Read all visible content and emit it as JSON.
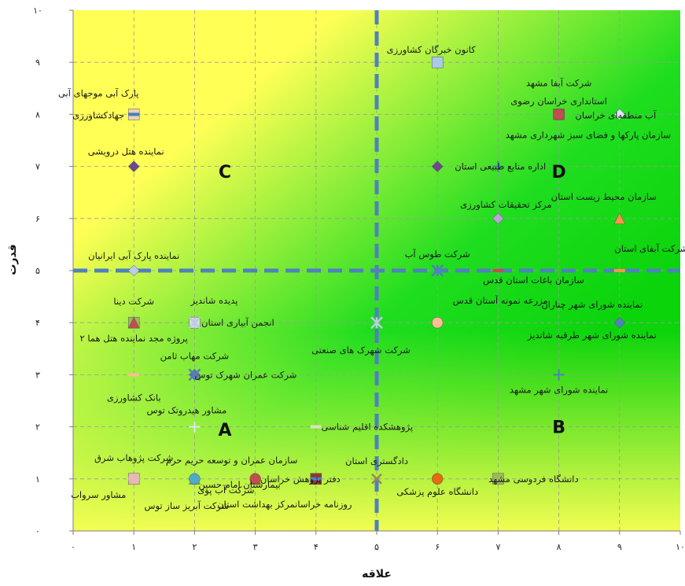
{
  "chart_data": {
    "type": "scatter",
    "title": "",
    "xlabel": "علاقه",
    "ylabel": "قدرت",
    "xlim": [
      0,
      10
    ],
    "ylim": [
      0,
      10
    ],
    "x_tick_labels": [
      "۰",
      "۱",
      "۲",
      "۳",
      "۴",
      "۵",
      "۶",
      "۷",
      "۸",
      "۹",
      "۱۰"
    ],
    "y_tick_labels": [
      "۰",
      "۱",
      "۲",
      "۳",
      "۴",
      "۵",
      "۶",
      "۷",
      "۸",
      "۹",
      "۱۰"
    ],
    "grid": true,
    "divider_x": 5,
    "divider_y": 5,
    "quadrant_labels": [
      {
        "text": "A",
        "x": 2.5,
        "y": 1.95
      },
      {
        "text": "B",
        "x": 8.0,
        "y": 2.0
      },
      {
        "text": "C",
        "x": 2.5,
        "y": 6.9
      },
      {
        "text": "D",
        "x": 8.0,
        "y": 6.9
      }
    ],
    "points": [
      {
        "label": "کانون خبرگان کشاورزی",
        "x": 6,
        "y": 9,
        "marker": "square",
        "color": "#aacbe8"
      },
      {
        "label": "پارک آبی موجهای آبی",
        "x": 1,
        "y": 8,
        "marker": "square",
        "color": "#ead4b6"
      },
      {
        "label": "جهادکشاورزی",
        "x": 1,
        "y": 8,
        "marker": "dash",
        "color": "#4a7ebb"
      },
      {
        "label": "شرکت آبفا مشهد",
        "x": 8,
        "y": 8,
        "marker": "square",
        "color": "#c0504d"
      },
      {
        "label": "استانداری خراسان رضوی",
        "x": 8,
        "y": 8,
        "marker": "circle",
        "color": "#c0504d"
      },
      {
        "label": "آب منطقه‌ای خراسان",
        "x": 9,
        "y": 8,
        "marker": "diamond",
        "color": "#dce6f2"
      },
      {
        "label": "سازمان پارکها و فضای سبز شهرداری مشهد",
        "x": 9,
        "y": 8,
        "marker": "diamond",
        "color": "#dce6f2"
      },
      {
        "label": "نماینده هتل درویشی",
        "x": 1,
        "y": 7,
        "marker": "diamond",
        "color": "#6c4a8c"
      },
      {
        "label": "اداره منابع طبیعی استان",
        "x": 6,
        "y": 7,
        "marker": "diamond",
        "color": "#6c4a8c"
      },
      {
        "label": "اداره منابع طبیعی استان",
        "x": 7,
        "y": 7,
        "marker": "plus",
        "color": "#4a7ebb"
      },
      {
        "label": "مرکز تحقیقات کشاورزی",
        "x": 7,
        "y": 6,
        "marker": "diamond",
        "color": "#b9a3d8"
      },
      {
        "label": "سازمان محیط زیست استان",
        "x": 9,
        "y": 6,
        "marker": "triangle",
        "color": "#f79646"
      },
      {
        "label": "نماینده پارک آبی ایرانیان",
        "x": 1,
        "y": 5,
        "marker": "diamond",
        "color": "#b9cde5"
      },
      {
        "label": "شرکت طوس آب",
        "x": 6,
        "y": 5,
        "marker": "star",
        "color": "#4f81bd"
      },
      {
        "label": "شرکت آبفای استان",
        "x": 9,
        "y": 5,
        "marker": "dash",
        "color": "#f79646"
      },
      {
        "label": "سازمان باغات استان قدس",
        "x": 7,
        "y": 5,
        "marker": "dash",
        "color": "#c0504d"
      },
      {
        "label": "شرکت دینا",
        "x": 1,
        "y": 4,
        "marker": "square",
        "color": "#9bbb59"
      },
      {
        "label": "پروژه مجد نماینده هتل هما ۲",
        "x": 1,
        "y": 4,
        "marker": "triangle",
        "color": "#c0504d"
      },
      {
        "label": "پدیده شاندیز",
        "x": 2,
        "y": 4,
        "marker": "square",
        "color": "#d9d9d9"
      },
      {
        "label": "انجمن آبیاری استان",
        "x": 2,
        "y": 4,
        "marker": "star",
        "color": "#b9cde5"
      },
      {
        "label": "مزرعه نمونه آستان قدس",
        "x": 6,
        "y": 4,
        "marker": "circle",
        "color": "#fac090"
      },
      {
        "label": "شرکت شهرک های صنعتی",
        "x": 5,
        "y": 4,
        "marker": "star",
        "color": "#b9cde5"
      },
      {
        "label": "نماینده شورای شهر چناران",
        "x": 9,
        "y": 4,
        "marker": "diamond",
        "color": "#4f81bd"
      },
      {
        "label": "نماینده شورای شهر طرقبه شاندیز",
        "x": 9,
        "y": 4,
        "marker": "diamond",
        "color": "#4f81bd"
      },
      {
        "label": "شرکت مهاب ثامن",
        "x": 2,
        "y": 3,
        "marker": "diamond",
        "color": "#8064a2"
      },
      {
        "label": "شرکت عمران شهرک توس",
        "x": 2,
        "y": 3,
        "marker": "star",
        "color": "#4f81bd"
      },
      {
        "label": "بانک کشاورزی",
        "x": 1,
        "y": 3,
        "marker": "dash",
        "color": "#fac090"
      },
      {
        "label": "نماینده شورای شهر مشهد",
        "x": 8,
        "y": 3,
        "marker": "plus",
        "color": "#4f81bd"
      },
      {
        "label": "مشاور هیدروتک توس",
        "x": 2,
        "y": 2,
        "marker": "plus",
        "color": "#dce6f2"
      },
      {
        "label": "پژوهشکده اقلیم شناسی",
        "x": 4,
        "y": 2,
        "marker": "dash",
        "color": "#d7e4bd"
      },
      {
        "label": "شرکت پژوهاب شرق",
        "x": 1,
        "y": 1,
        "marker": "square",
        "color": "#e6b9b8"
      },
      {
        "label": "شرکت آب پوی",
        "x": 2,
        "y": 1,
        "marker": "triangle",
        "color": "#9bbb59"
      },
      {
        "label": "شرکت آبریز ساز توس",
        "x": 2,
        "y": 1,
        "marker": "circle",
        "color": "#4bacc6"
      },
      {
        "label": "مشاور سرواب",
        "x": 1,
        "y": 1,
        "marker": "dash",
        "color": "#e6b9b8"
      },
      {
        "label": "سازمان عمران و توسعه حریم حرم",
        "x": 3,
        "y": 1,
        "marker": "triangle",
        "color": "#c0504d"
      },
      {
        "label": "بیمارستان امام حسین",
        "x": 3,
        "y": 1,
        "marker": "circle",
        "color": "#c0504d"
      },
      {
        "label": "دفتر پژوهش خراسان",
        "x": 4,
        "y": 1,
        "marker": "square",
        "color": "#953735"
      },
      {
        "label": "روزنامه خراسانمرکز بهداشت استان",
        "x": 4,
        "y": 1,
        "marker": "dash",
        "color": "#4f81bd"
      },
      {
        "label": "دادگستری استان",
        "x": 5,
        "y": 1,
        "marker": "x",
        "color": "#948a54"
      },
      {
        "label": "دانشگاه علوم پزشکی",
        "x": 6,
        "y": 1,
        "marker": "circle",
        "color": "#e46c0a"
      },
      {
        "label": "دانشگاه فردوسی مشهد",
        "x": 7,
        "y": 1,
        "marker": "square",
        "color": "#9bbb59"
      }
    ]
  }
}
